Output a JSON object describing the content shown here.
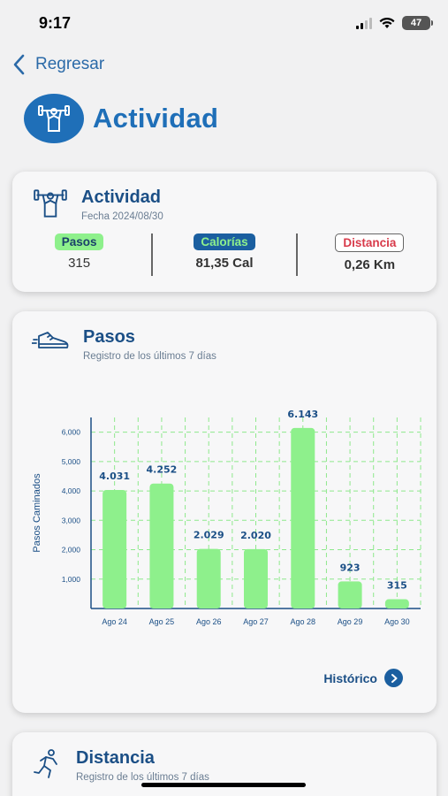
{
  "status": {
    "time": "9:17",
    "battery": "47"
  },
  "nav": {
    "back_label": "Regresar"
  },
  "page": {
    "title": "Actividad"
  },
  "activity_card": {
    "title": "Actividad",
    "date": "Fecha 2024/08/30",
    "metrics": [
      {
        "label": "Pasos",
        "value": "315"
      },
      {
        "label": "Calorías",
        "value": "81,35 Cal"
      },
      {
        "label": "Distancia",
        "value": "0,26 Km"
      }
    ]
  },
  "steps_card": {
    "title": "Pasos",
    "subtitle": "Registro de los últimos 7 días",
    "historico_label": "Histórico"
  },
  "distance_card": {
    "title": "Distancia",
    "subtitle": "Registro de los últimos 7 días"
  },
  "colors": {
    "accent": "#1f6fb8",
    "bar": "#8ef08c",
    "grid": "#8ee88c"
  },
  "chart_data": {
    "type": "bar",
    "categories": [
      "Ago 24",
      "Ago 25",
      "Ago 26",
      "Ago 27",
      "Ago 28",
      "Ago 29",
      "Ago 30"
    ],
    "values": [
      4031,
      4252,
      2029,
      2020,
      6143,
      923,
      315
    ],
    "value_labels": [
      "4.031",
      "4.252",
      "2.029",
      "2.020",
      "6.143",
      "923",
      "315"
    ],
    "yticks": [
      1000,
      2000,
      3000,
      4000,
      5000,
      6000
    ],
    "ytick_labels": [
      "1,000",
      "2,000",
      "3,000",
      "4,000",
      "5,000",
      "6,000"
    ],
    "ylabel": "Pasos Caminados",
    "ylim": [
      0,
      6500
    ],
    "grid": true
  }
}
